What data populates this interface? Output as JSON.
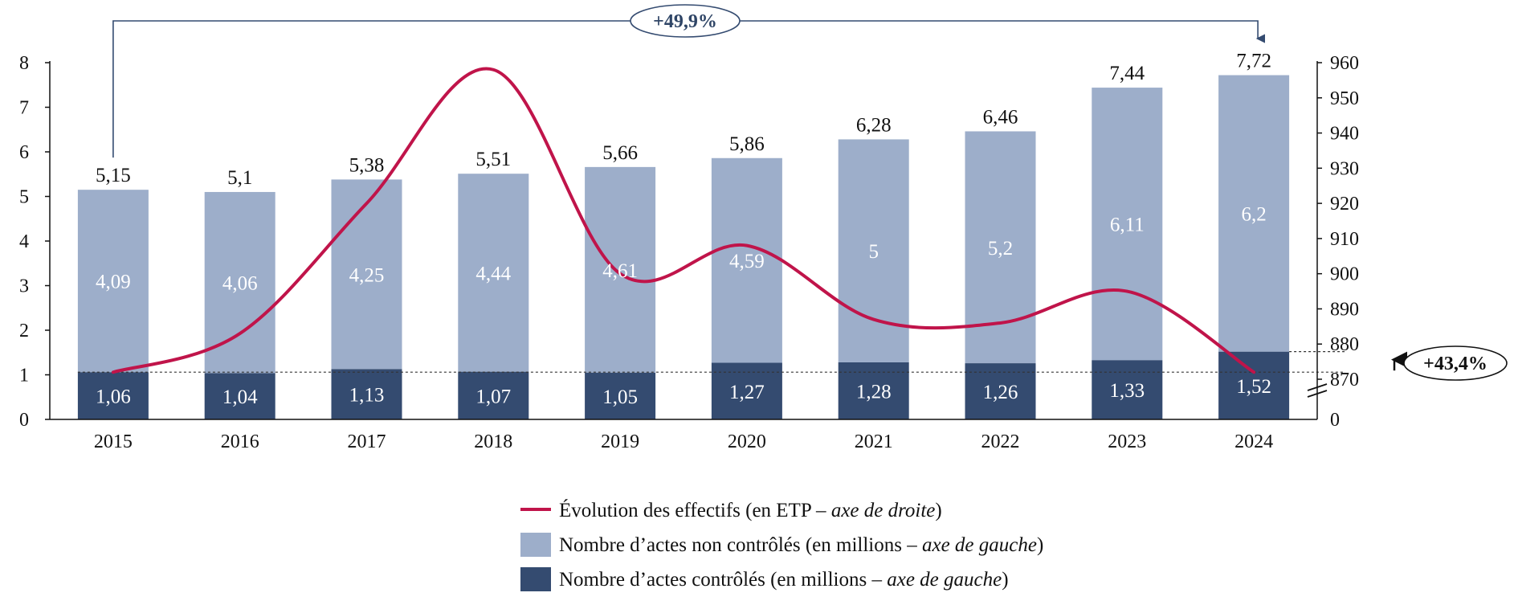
{
  "colors": {
    "controlled": "#344b70",
    "uncontrolled": "#9daeca",
    "line": "#c0144a",
    "axis": "#111111",
    "bubble_top_text": "#2f4566",
    "bubble_right_text": "#111111"
  },
  "chart_data": {
    "type": "bar",
    "stacked": true,
    "categories": [
      "2015",
      "2016",
      "2017",
      "2018",
      "2019",
      "2020",
      "2021",
      "2022",
      "2023",
      "2024"
    ],
    "series": [
      {
        "name": "Nombre d’actes contrôlés (en millions – axe de gauche)",
        "axis": "left",
        "values": [
          1.06,
          1.04,
          1.13,
          1.07,
          1.05,
          1.27,
          1.28,
          1.26,
          1.33,
          1.52
        ],
        "labels": [
          "1,06",
          "1,04",
          "1,13",
          "1,07",
          "1,05",
          "1,27",
          "1,28",
          "1,26",
          "1,33",
          "1,52"
        ]
      },
      {
        "name": "Nombre d’actes non contrôlés (en millions – axe de gauche)",
        "axis": "left",
        "values": [
          4.09,
          4.06,
          4.25,
          4.44,
          4.61,
          4.59,
          5.0,
          5.2,
          6.11,
          6.2
        ],
        "labels": [
          "4,09",
          "4,06",
          "4,25",
          "4,44",
          "4,61",
          "4,59",
          "5",
          "5,2",
          "6,11",
          "6,2"
        ]
      }
    ],
    "totals": [
      "5,15",
      "5,1",
      "5,38",
      "5,51",
      "5,66",
      "5,86",
      "6,28",
      "6,46",
      "7,44",
      "7,72"
    ],
    "totals_values": [
      5.15,
      5.1,
      5.38,
      5.51,
      5.66,
      5.86,
      6.28,
      6.46,
      7.44,
      7.72
    ],
    "line": {
      "name": "Évolution des effectifs (en ETP – axe de droite)",
      "axis": "right",
      "values": [
        872,
        883,
        920,
        958,
        900,
        908,
        887,
        886,
        895,
        872
      ]
    },
    "left_axis": {
      "ylim": [
        0,
        8
      ],
      "ticks": [
        "0",
        "1",
        "2",
        "3",
        "4",
        "5",
        "6",
        "7",
        "8"
      ]
    },
    "right_axis": {
      "ylim": [
        870,
        960
      ],
      "broken": true,
      "ticks": [
        "870",
        "880",
        "890",
        "900",
        "910",
        "920",
        "930",
        "940",
        "950",
        "960"
      ],
      "zero_label": "0"
    },
    "annotations": {
      "top_growth": "+49,9%",
      "right_growth": "+43,4%"
    },
    "legend": [
      {
        "kind": "line",
        "text": "Évolution des effectifs (en ETP – ",
        "italic": "axe de droite",
        "close": ")"
      },
      {
        "kind": "swatch-light",
        "text": "Nombre d’actes non contrôlés (en millions – ",
        "italic": "axe de gauche",
        "close": ")"
      },
      {
        "kind": "swatch-dark",
        "text": "Nombre d’actes contrôlés (en millions – ",
        "italic": "axe de gauche",
        "close": ")"
      }
    ],
    "grid": false,
    "legend_position": "bottom-center"
  }
}
